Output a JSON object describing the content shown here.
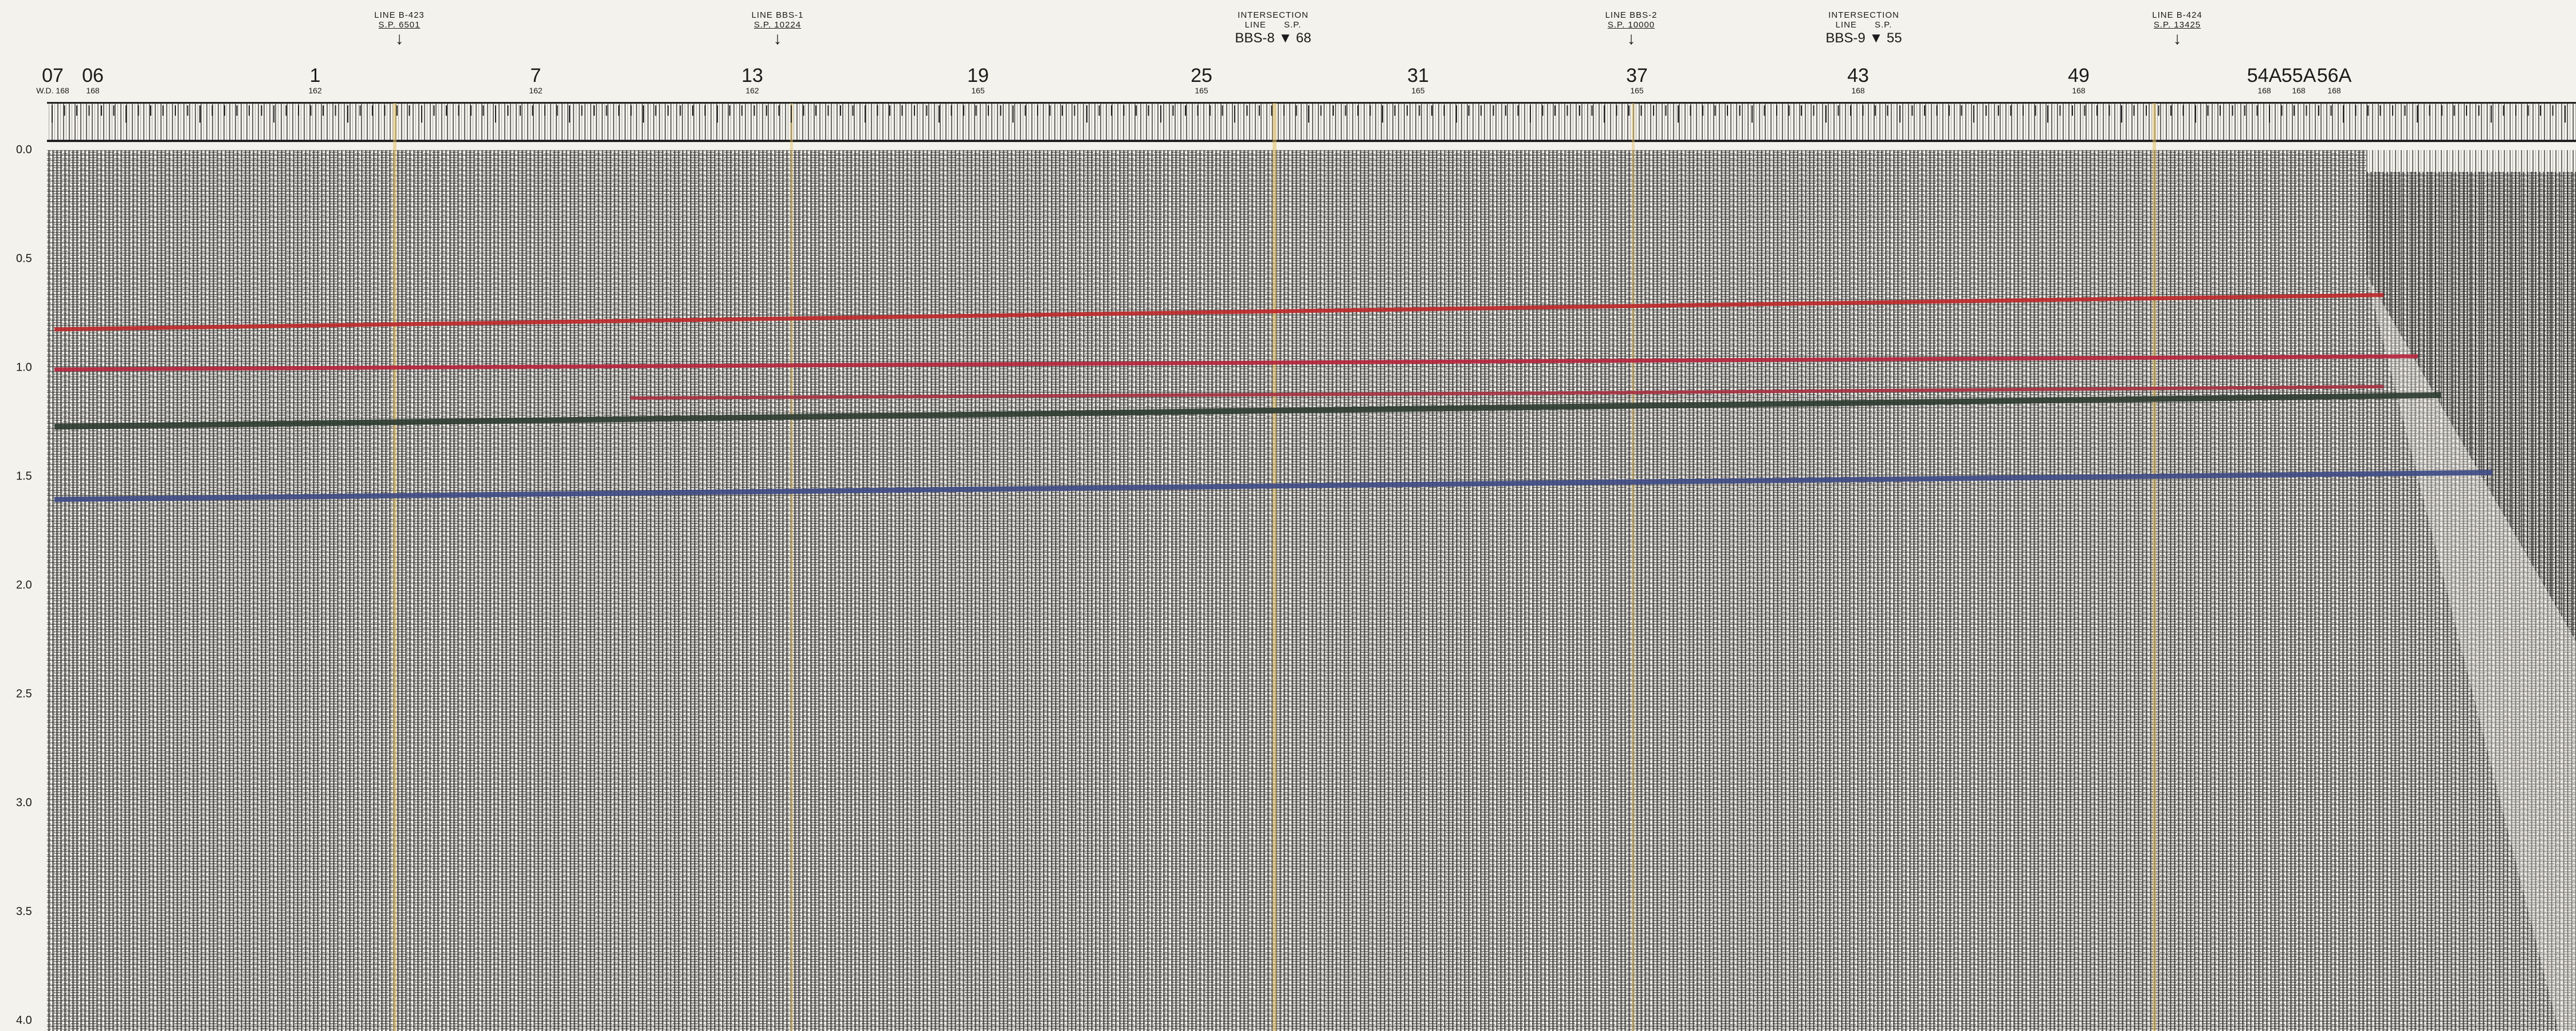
{
  "line_annotations": [
    {
      "id": "b423",
      "line": "LINE B-423",
      "sp": "S.P. 6501"
    },
    {
      "id": "bbs1",
      "line": "LINE BBS-1",
      "sp": "S.P. 10224"
    },
    {
      "id": "bbs2",
      "line": "LINE BBS-2",
      "sp": "S.P. 10000"
    },
    {
      "id": "b424",
      "line": "LINE B-424",
      "sp": "S.P. 13425"
    }
  ],
  "intersections": [
    {
      "id": "bbs8",
      "title": "INTERSECTION",
      "line_label": "LINE",
      "sp_label": "S.P.",
      "line_name": "BBS-8",
      "sp_value": "68"
    },
    {
      "id": "bbs9",
      "title": "INTERSECTION",
      "line_label": "LINE",
      "sp_label": "S.P.",
      "line_name": "BBS-9",
      "sp_value": "55"
    }
  ],
  "shotpoints": [
    {
      "id": "07",
      "label": "07",
      "sub": "W.D. 168"
    },
    {
      "id": "06",
      "label": "06",
      "sub": "168"
    },
    {
      "id": "1",
      "label": "1",
      "sub": "162"
    },
    {
      "id": "7",
      "label": "7",
      "sub": "162"
    },
    {
      "id": "13",
      "label": "13",
      "sub": "162"
    },
    {
      "id": "19",
      "label": "19",
      "sub": "165"
    },
    {
      "id": "25",
      "label": "25",
      "sub": "165"
    },
    {
      "id": "31",
      "label": "31",
      "sub": "165"
    },
    {
      "id": "37",
      "label": "37",
      "sub": "165"
    },
    {
      "id": "43",
      "label": "43",
      "sub": "168"
    },
    {
      "id": "49",
      "label": "49",
      "sub": "168"
    },
    {
      "id": "54A",
      "label": "54A",
      "sub": "168"
    },
    {
      "id": "55A",
      "label": "55A",
      "sub": "168"
    },
    {
      "id": "56A",
      "label": "56A",
      "sub": "168"
    }
  ],
  "time_axis": [
    "0.0",
    "0.5",
    "1.0",
    "1.5",
    "2.0",
    "2.5",
    "3.0",
    "3.5",
    "4.0"
  ],
  "horizons": [
    {
      "name": "red-horizon-upper",
      "color": "#c0282a"
    },
    {
      "name": "red-horizon-middle",
      "color": "#b8243c"
    },
    {
      "name": "red-horizon-lower",
      "color": "#a83040"
    },
    {
      "name": "dark-green-horizon",
      "color": "#2c3b30"
    },
    {
      "name": "blue-horizon",
      "color": "#3e4a86"
    }
  ],
  "colors": {
    "paper": "#f4f2ec",
    "ink": "#1b1b1b",
    "marker_line": "#e2bf62"
  }
}
